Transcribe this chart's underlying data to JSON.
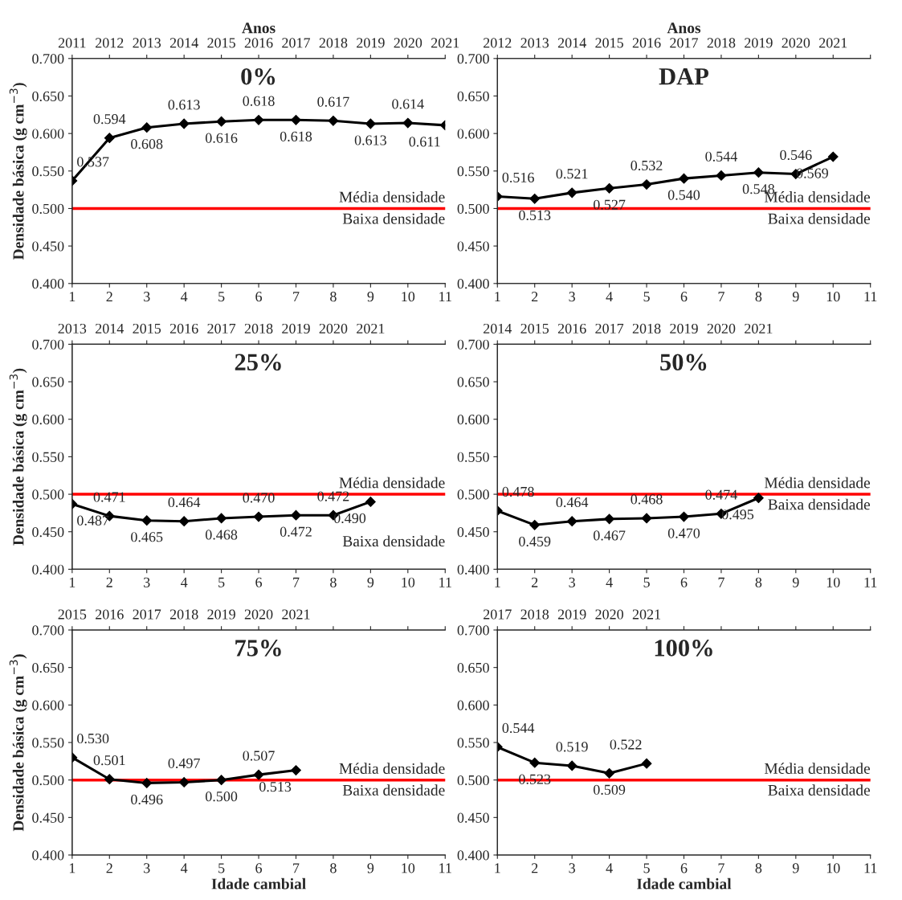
{
  "chart_data": [
    {
      "type": "line",
      "title": "0%",
      "x2label": "Anos",
      "ylabel": "Densidade básica (g cm$^{−3}$)",
      "xlim": [
        1,
        11
      ],
      "xticks": [
        1,
        2,
        3,
        4,
        5,
        6,
        7,
        8,
        9,
        10,
        11
      ],
      "x2lim": [
        2011,
        2021
      ],
      "x2ticks": [
        2011,
        2012,
        2013,
        2014,
        2015,
        2016,
        2017,
        2018,
        2019,
        2020,
        2021
      ],
      "ylim": [
        0.4,
        0.7
      ],
      "yticks": [
        {
          "value": 0.4,
          "label": "0.400"
        },
        {
          "value": 0.45,
          "label": "0.450"
        },
        {
          "value": 0.5,
          "label": "0.500"
        },
        {
          "value": 0.55,
          "label": "0.550"
        },
        {
          "value": 0.6,
          "label": "0.600"
        },
        {
          "value": 0.65,
          "label": "0.650"
        },
        {
          "value": 0.7,
          "label": "0.700"
        }
      ],
      "marker": "diamond",
      "line_style": "solid",
      "series": [
        {
          "color": "#000000",
          "x": [
            1,
            2,
            3,
            4,
            5,
            6,
            7,
            8,
            9,
            10,
            11
          ],
          "values": [
            0.537,
            0.594,
            0.608,
            0.613,
            0.616,
            0.618,
            0.618,
            0.617,
            0.613,
            0.614,
            0.611
          ],
          "value_labels": [
            "0.537",
            "0.594",
            "0.608",
            "0.613",
            "0.616",
            "0.618",
            "0.618",
            "0.617",
            "0.613",
            "0.614",
            "0.611"
          ]
        }
      ],
      "ref_lines": [
        {
          "axis": "y",
          "value": 0.5,
          "label": "Média densidade",
          "color": "#ff0000"
        }
      ],
      "annotations": [
        "Baixa densidade"
      ]
    },
    {
      "type": "line",
      "title": "DAP",
      "x2label": "Anos",
      "xlim": [
        1,
        11
      ],
      "xticks": [
        1,
        2,
        3,
        4,
        5,
        6,
        7,
        8,
        9,
        10,
        11
      ],
      "x2lim": [
        2012,
        2022
      ],
      "x2ticks": [
        2012,
        2013,
        2014,
        2015,
        2016,
        2017,
        2018,
        2019,
        2020,
        2021,
        {
          "value": 2022,
          "label": null
        }
      ],
      "ylim": [
        0.4,
        0.7
      ],
      "yticks": [
        {
          "value": 0.4,
          "label": "0.400"
        },
        {
          "value": 0.45,
          "label": "0.450"
        },
        {
          "value": 0.5,
          "label": "0.500"
        },
        {
          "value": 0.55,
          "label": "0.550"
        },
        {
          "value": 0.6,
          "label": "0.600"
        },
        {
          "value": 0.65,
          "label": "0.650"
        },
        {
          "value": 0.7,
          "label": "0.700"
        }
      ],
      "marker": "diamond",
      "line_style": "solid",
      "series": [
        {
          "color": "#000000",
          "x": [
            1,
            2,
            3,
            4,
            5,
            6,
            7,
            8,
            9,
            10
          ],
          "values": [
            0.516,
            0.513,
            0.521,
            0.527,
            0.532,
            0.54,
            0.544,
            0.548,
            0.546,
            0.569
          ],
          "value_labels": [
            "0.516",
            "0.513",
            "0.521",
            "0.527",
            "0.532",
            "0.540",
            "0.544",
            "0.548",
            "0.546",
            "0.569"
          ]
        }
      ],
      "ref_lines": [
        {
          "axis": "y",
          "value": 0.5,
          "label": "Média densidade",
          "color": "#ff0000"
        }
      ],
      "annotations": [
        "Baixa densidade"
      ]
    },
    {
      "type": "line",
      "title": "25%",
      "ylabel": "Densidade básica (g cm$^{−3}$)",
      "xlim": [
        1,
        11
      ],
      "xticks": [
        1,
        2,
        3,
        4,
        5,
        6,
        7,
        8,
        9,
        10,
        11
      ],
      "x2lim": [
        2013,
        2023
      ],
      "x2ticks": [
        2013,
        2014,
        2015,
        2016,
        2017,
        2018,
        2019,
        2020,
        2021,
        {
          "value": 2022,
          "label": null
        },
        {
          "value": 2023,
          "label": null
        }
      ],
      "ylim": [
        0.4,
        0.7
      ],
      "yticks": [
        {
          "value": 0.4,
          "label": "0.400"
        },
        {
          "value": 0.45,
          "label": "0.450"
        },
        {
          "value": 0.5,
          "label": "0.500"
        },
        {
          "value": 0.55,
          "label": "0.550"
        },
        {
          "value": 0.6,
          "label": "0.600"
        },
        {
          "value": 0.65,
          "label": "0.650"
        },
        {
          "value": 0.7,
          "label": "0.700"
        }
      ],
      "marker": "diamond",
      "line_style": "solid",
      "series": [
        {
          "color": "#000000",
          "x": [
            1,
            2,
            3,
            4,
            5,
            6,
            7,
            8,
            9
          ],
          "values": [
            0.487,
            0.471,
            0.465,
            0.464,
            0.468,
            0.47,
            0.472,
            0.472,
            0.49
          ],
          "value_labels": [
            "0.487",
            "0.471",
            "0.465",
            "0.464",
            "0.468",
            "0.470",
            "0.472",
            "0.472",
            "0.490"
          ]
        }
      ],
      "ref_lines": [
        {
          "axis": "y",
          "value": 0.5,
          "label": "Média densidade",
          "color": "#ff0000"
        }
      ],
      "annotations": [
        "Baixa densidade"
      ]
    },
    {
      "type": "line",
      "title": "50%",
      "xlim": [
        1,
        11
      ],
      "xticks": [
        1,
        2,
        3,
        4,
        5,
        6,
        7,
        8,
        9,
        10,
        11
      ],
      "x2lim": [
        2014,
        2024
      ],
      "x2ticks": [
        2014,
        2015,
        2016,
        2017,
        2018,
        2019,
        2020,
        2021,
        {
          "value": 2022,
          "label": null
        },
        {
          "value": 2023,
          "label": null
        },
        {
          "value": 2024,
          "label": null
        }
      ],
      "ylim": [
        0.4,
        0.7
      ],
      "yticks": [
        {
          "value": 0.4,
          "label": "0.400"
        },
        {
          "value": 0.45,
          "label": "0.450"
        },
        {
          "value": 0.5,
          "label": "0.500"
        },
        {
          "value": 0.55,
          "label": "0.550"
        },
        {
          "value": 0.6,
          "label": "0.600"
        },
        {
          "value": 0.65,
          "label": "0.650"
        },
        {
          "value": 0.7,
          "label": "0.700"
        }
      ],
      "marker": "diamond",
      "line_style": "solid",
      "series": [
        {
          "color": "#000000",
          "x": [
            1,
            2,
            3,
            4,
            5,
            6,
            7,
            8
          ],
          "values": [
            0.478,
            0.459,
            0.464,
            0.467,
            0.468,
            0.47,
            0.474,
            0.495
          ],
          "value_labels": [
            "0.478",
            "0.459",
            "0.464",
            "0.467",
            "0.468",
            "0.470",
            "0.474",
            "0.495"
          ]
        }
      ],
      "ref_lines": [
        {
          "axis": "y",
          "value": 0.5,
          "label": "Média densidade",
          "color": "#ff0000"
        }
      ],
      "annotations": [
        "Baixa densidade"
      ]
    },
    {
      "type": "line",
      "title": "75%",
      "xlabel": "Idade cambial",
      "ylabel": "Densidade básica (g cm$^{−3}$)",
      "xlim": [
        1,
        11
      ],
      "xticks": [
        1,
        2,
        3,
        4,
        5,
        6,
        7,
        8,
        9,
        10,
        11
      ],
      "x2lim": [
        2015,
        2025
      ],
      "x2ticks": [
        2015,
        2016,
        2017,
        2018,
        2019,
        2020,
        2021,
        {
          "value": 2022,
          "label": null
        },
        {
          "value": 2023,
          "label": null
        },
        {
          "value": 2024,
          "label": null
        },
        {
          "value": 2025,
          "label": null
        }
      ],
      "ylim": [
        0.4,
        0.7
      ],
      "yticks": [
        {
          "value": 0.4,
          "label": "0.400"
        },
        {
          "value": 0.45,
          "label": "0.450"
        },
        {
          "value": 0.5,
          "label": "0.500"
        },
        {
          "value": 0.55,
          "label": "0.550"
        },
        {
          "value": 0.6,
          "label": "0.600"
        },
        {
          "value": 0.65,
          "label": "0.650"
        },
        {
          "value": 0.7,
          "label": "0.700"
        }
      ],
      "marker": "diamond",
      "line_style": "solid",
      "series": [
        {
          "color": "#000000",
          "x": [
            1,
            2,
            3,
            4,
            5,
            6,
            7
          ],
          "values": [
            0.53,
            0.501,
            0.496,
            0.497,
            0.5,
            0.507,
            0.513
          ],
          "value_labels": [
            "0.530",
            "0.501",
            "0.496",
            "0.497",
            "0.500",
            "0.507",
            "0.513"
          ]
        }
      ],
      "ref_lines": [
        {
          "axis": "y",
          "value": 0.5,
          "label": "Média densidade",
          "color": "#ff0000"
        }
      ],
      "annotations": [
        "Baixa densidade"
      ]
    },
    {
      "type": "line",
      "title": "100%",
      "xlabel": "Idade cambial",
      "xlim": [
        1,
        11
      ],
      "xticks": [
        1,
        2,
        3,
        4,
        5,
        6,
        7,
        8,
        9,
        10,
        11
      ],
      "x2lim": [
        2017,
        2027
      ],
      "x2ticks": [
        2017,
        2018,
        2019,
        2020,
        2021,
        {
          "value": 2022,
          "label": null
        },
        {
          "value": 2023,
          "label": null
        },
        {
          "value": 2024,
          "label": null
        },
        {
          "value": 2025,
          "label": null
        },
        {
          "value": 2026,
          "label": null
        },
        {
          "value": 2027,
          "label": null
        }
      ],
      "ylim": [
        0.4,
        0.7
      ],
      "yticks": [
        {
          "value": 0.4,
          "label": "0.400"
        },
        {
          "value": 0.45,
          "label": "0.450"
        },
        {
          "value": 0.5,
          "label": "0.500"
        },
        {
          "value": 0.55,
          "label": "0.550"
        },
        {
          "value": 0.6,
          "label": "0.600"
        },
        {
          "value": 0.65,
          "label": "0.650"
        },
        {
          "value": 0.7,
          "label": "0.700"
        }
      ],
      "marker": "diamond",
      "line_style": "solid",
      "series": [
        {
          "color": "#000000",
          "x": [
            1,
            2,
            3,
            4,
            5
          ],
          "values": [
            0.544,
            0.523,
            0.519,
            0.509,
            0.522
          ],
          "value_labels": [
            "0.544",
            "0.523",
            "0.519",
            "0.509",
            "0.522"
          ]
        }
      ],
      "ref_lines": [
        {
          "axis": "y",
          "value": 0.5,
          "label": "Média densidade",
          "color": "#ff0000"
        }
      ],
      "annotations": [
        "Baixa densidade"
      ]
    }
  ]
}
